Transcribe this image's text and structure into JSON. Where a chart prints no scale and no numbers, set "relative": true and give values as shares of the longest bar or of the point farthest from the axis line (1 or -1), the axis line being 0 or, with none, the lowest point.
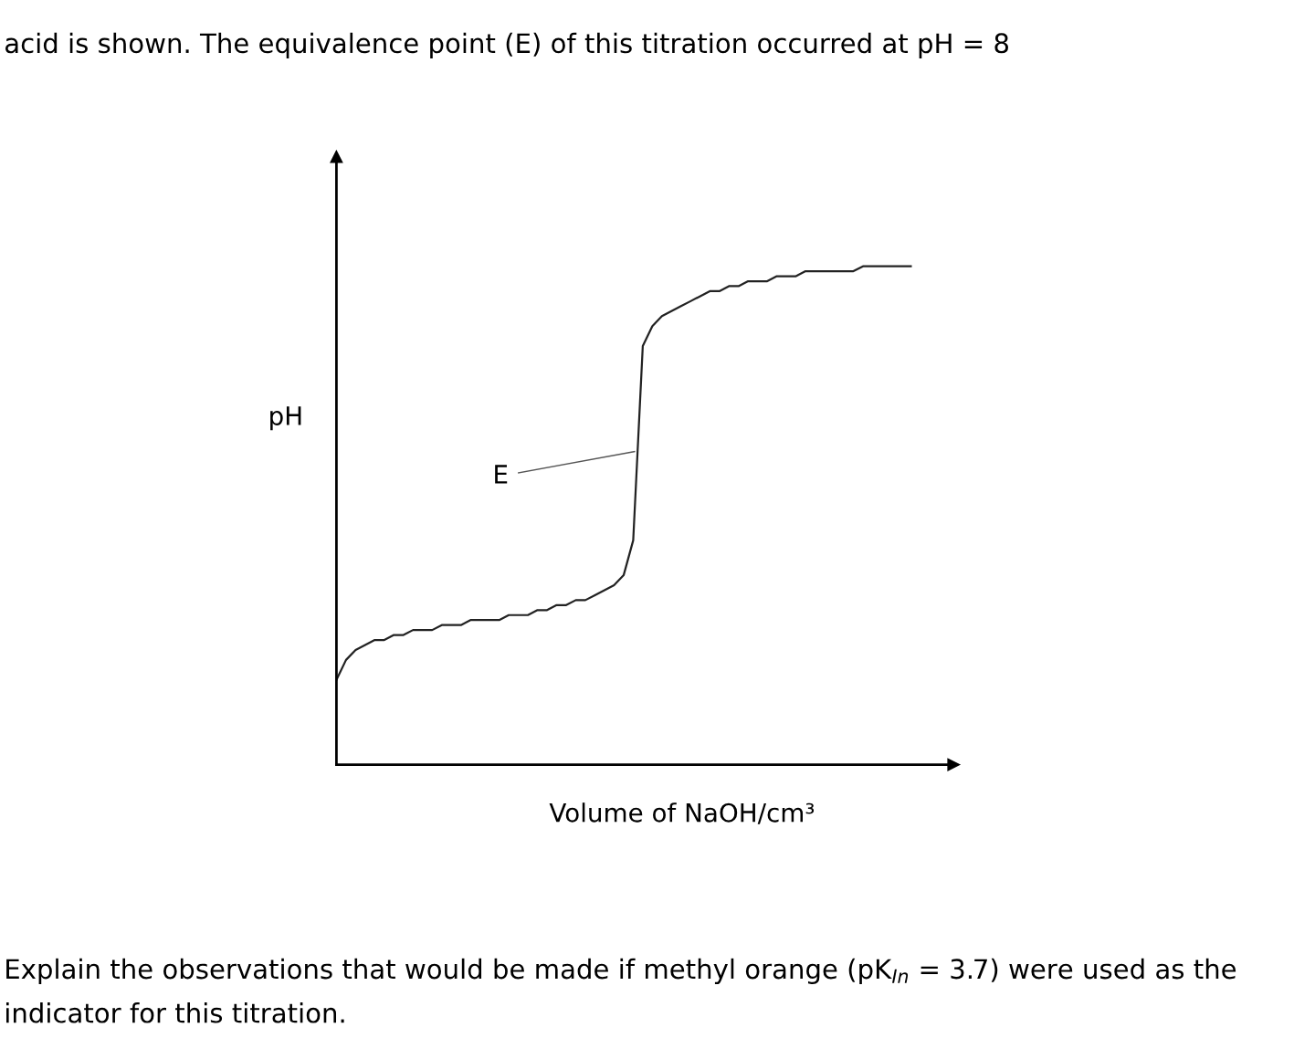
{
  "chart_data": {
    "type": "line",
    "title": "acid is shown. The equivalence point (E) of this titration occurred at pH = 8",
    "xlabel": "Volume of NaOH/cm³",
    "ylabel": "pH",
    "relative": true,
    "legend": false,
    "marker": "none",
    "line_style": "solid",
    "categories": [
      null,
      null,
      null,
      null,
      null,
      null,
      null,
      null,
      null,
      null,
      null,
      null,
      null,
      null,
      null,
      null,
      null,
      null,
      null,
      null,
      null,
      null,
      null,
      null,
      null,
      null,
      null,
      null,
      null,
      null,
      null,
      null,
      null,
      null,
      null,
      null,
      null,
      null,
      null,
      null,
      null,
      null,
      null,
      null,
      null,
      null,
      null,
      null,
      null,
      null,
      null,
      null,
      null,
      null,
      null,
      null,
      null,
      null,
      null,
      null,
      null
    ],
    "series": [
      {
        "color": "#222222",
        "values": [
          0.17,
          0.21,
          0.23,
          0.24,
          0.25,
          0.25,
          0.26,
          0.26,
          0.27,
          0.27,
          0.27,
          0.28,
          0.28,
          0.28,
          0.29,
          0.29,
          0.29,
          0.29,
          0.3,
          0.3,
          0.3,
          0.31,
          0.31,
          0.32,
          0.32,
          0.33,
          0.33,
          0.34,
          0.35,
          0.36,
          0.38,
          0.45,
          0.84,
          0.88,
          0.9,
          0.91,
          0.92,
          0.93,
          0.94,
          0.95,
          0.95,
          0.96,
          0.96,
          0.97,
          0.97,
          0.97,
          0.98,
          0.98,
          0.98,
          0.99,
          0.99,
          0.99,
          0.99,
          0.99,
          0.99,
          1.0,
          1.0,
          1.0,
          1.0,
          1.0,
          1.0
        ]
      }
    ],
    "annotations": [
      "E",
      "Explain the observations that would be made if methyl orange (pK$_{In}$ = 3.7) were used as the indicator for this titration."
    ]
  }
}
